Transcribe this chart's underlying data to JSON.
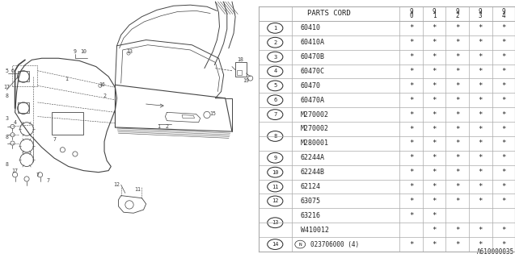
{
  "bg_color": "#ffffff",
  "rows": [
    {
      "num": "1",
      "display": "1",
      "part": "60410",
      "marks": [
        true,
        true,
        true,
        true,
        true
      ],
      "group_start": true,
      "group_size": 1
    },
    {
      "num": "2",
      "display": "2",
      "part": "60410A",
      "marks": [
        true,
        true,
        true,
        true,
        true
      ],
      "group_start": true,
      "group_size": 1
    },
    {
      "num": "3",
      "display": "3",
      "part": "60470B",
      "marks": [
        true,
        true,
        true,
        true,
        true
      ],
      "group_start": true,
      "group_size": 1
    },
    {
      "num": "4",
      "display": "4",
      "part": "60470C",
      "marks": [
        true,
        true,
        true,
        true,
        true
      ],
      "group_start": true,
      "group_size": 1
    },
    {
      "num": "5",
      "display": "5",
      "part": "60470",
      "marks": [
        true,
        true,
        true,
        true,
        true
      ],
      "group_start": true,
      "group_size": 1
    },
    {
      "num": "6",
      "display": "6",
      "part": "60470A",
      "marks": [
        true,
        true,
        true,
        true,
        true
      ],
      "group_start": true,
      "group_size": 1
    },
    {
      "num": "7",
      "display": "7",
      "part": "M270002",
      "marks": [
        true,
        true,
        true,
        true,
        true
      ],
      "group_start": true,
      "group_size": 1
    },
    {
      "num": "8a",
      "display": "8",
      "part": "M270002",
      "marks": [
        true,
        true,
        true,
        true,
        true
      ],
      "group_start": true,
      "group_size": 2
    },
    {
      "num": "8b",
      "display": "",
      "part": "M280001",
      "marks": [
        true,
        true,
        true,
        true,
        true
      ],
      "group_start": false,
      "group_size": 0
    },
    {
      "num": "9",
      "display": "9",
      "part": "62244A",
      "marks": [
        true,
        true,
        true,
        true,
        true
      ],
      "group_start": true,
      "group_size": 1
    },
    {
      "num": "10",
      "display": "10",
      "part": "62244B",
      "marks": [
        true,
        true,
        true,
        true,
        true
      ],
      "group_start": true,
      "group_size": 1
    },
    {
      "num": "11",
      "display": "11",
      "part": "62124",
      "marks": [
        true,
        true,
        true,
        true,
        true
      ],
      "group_start": true,
      "group_size": 1
    },
    {
      "num": "12",
      "display": "12",
      "part": "63075",
      "marks": [
        true,
        true,
        true,
        true,
        true
      ],
      "group_start": true,
      "group_size": 1
    },
    {
      "num": "13a",
      "display": "13",
      "part": "63216",
      "marks": [
        true,
        true,
        false,
        false,
        false
      ],
      "group_start": true,
      "group_size": 2
    },
    {
      "num": "13b",
      "display": "",
      "part": "W410012",
      "marks": [
        false,
        true,
        true,
        true,
        true
      ],
      "group_start": false,
      "group_size": 0
    },
    {
      "num": "14",
      "display": "14",
      "part": "023706000 (4)",
      "marks": [
        true,
        true,
        true,
        true,
        true
      ],
      "group_start": true,
      "group_size": 1
    }
  ],
  "year_headers": [
    "9\n0",
    "9\n1",
    "9\n2",
    "9\n3",
    "9\n4"
  ],
  "footer_code": "A610000035",
  "line_color": "#aaaaaa",
  "text_color": "#222222",
  "diagram_color": "#444444",
  "font_size": 6.5
}
